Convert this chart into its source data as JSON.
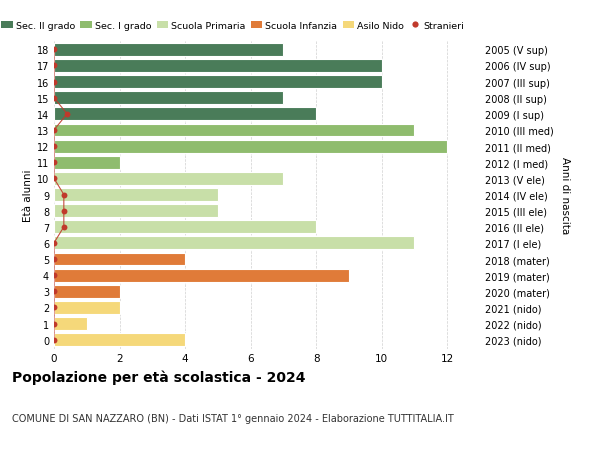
{
  "ages": [
    18,
    17,
    16,
    15,
    14,
    13,
    12,
    11,
    10,
    9,
    8,
    7,
    6,
    5,
    4,
    3,
    2,
    1,
    0
  ],
  "years": [
    "2005 (V sup)",
    "2006 (IV sup)",
    "2007 (III sup)",
    "2008 (II sup)",
    "2009 (I sup)",
    "2010 (III med)",
    "2011 (II med)",
    "2012 (I med)",
    "2013 (V ele)",
    "2014 (IV ele)",
    "2015 (III ele)",
    "2016 (II ele)",
    "2017 (I ele)",
    "2018 (mater)",
    "2019 (mater)",
    "2020 (mater)",
    "2021 (nido)",
    "2022 (nido)",
    "2023 (nido)"
  ],
  "values": [
    7,
    10,
    10,
    7,
    8,
    11,
    12,
    2,
    7,
    5,
    5,
    8,
    11,
    4,
    9,
    2,
    2,
    1,
    4
  ],
  "bar_colors": [
    "#4a7c59",
    "#4a7c59",
    "#4a7c59",
    "#4a7c59",
    "#4a7c59",
    "#8fbc6e",
    "#8fbc6e",
    "#8fbc6e",
    "#c8dfa8",
    "#c8dfa8",
    "#c8dfa8",
    "#c8dfa8",
    "#c8dfa8",
    "#e07b39",
    "#e07b39",
    "#e07b39",
    "#f5d87a",
    "#f5d87a",
    "#f5d87a"
  ],
  "stranieri_x": [
    0,
    0,
    0,
    0,
    0.4,
    0,
    0,
    0,
    0,
    0.3,
    0.3,
    0.3,
    0,
    0,
    0,
    0,
    0,
    0,
    0
  ],
  "stranieri_present": [
    1,
    1,
    1,
    1,
    1,
    1,
    1,
    1,
    1,
    1,
    1,
    1,
    1,
    1,
    1,
    1,
    1,
    1,
    1
  ],
  "legend_labels": [
    "Sec. II grado",
    "Sec. I grado",
    "Scuola Primaria",
    "Scuola Infanzia",
    "Asilo Nido",
    "Stranieri"
  ],
  "legend_colors": [
    "#4a7c59",
    "#8fbc6e",
    "#c8dfa8",
    "#e07b39",
    "#f5d87a",
    "#c0392b"
  ],
  "stranieri_dot_color": "#c0392b",
  "stranieri_line_color": "#c0392b",
  "ylabel": "Età alunni",
  "ylabel_right": "Anni di nascita",
  "title": "Popolazione per età scolastica - 2024",
  "subtitle": "COMUNE DI SAN NAZZARO (BN) - Dati ISTAT 1° gennaio 2024 - Elaborazione TUTTITALIA.IT",
  "xlim": [
    0,
    13
  ],
  "ylim_min": -0.55,
  "ylim_max": 18.55,
  "background_color": "#ffffff",
  "grid_color": "#d0d0d0",
  "bar_height": 0.8,
  "tick_fontsize": 7,
  "label_fontsize": 7.5,
  "title_fontsize": 10,
  "subtitle_fontsize": 7
}
